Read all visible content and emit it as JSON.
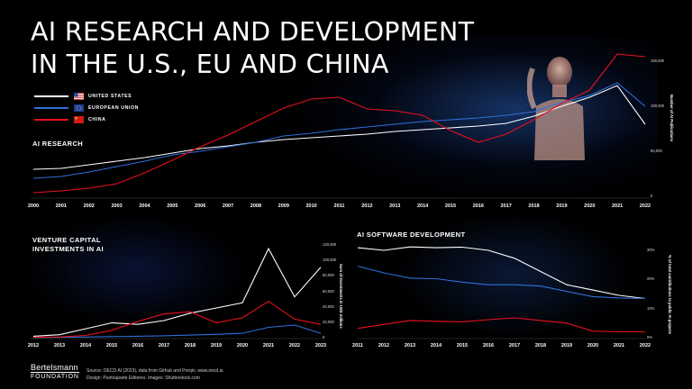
{
  "title": {
    "line1": "AI RESEARCH AND DEVELOPMENT",
    "line2": "IN THE U.S., EU AND CHINA"
  },
  "legend": [
    {
      "label": "UNITED STATES",
      "color": "#ffffff",
      "flag": "us-flag-icon"
    },
    {
      "label": "EUROPEAN UNION",
      "color": "#2f6fd8",
      "flag": "eu-flag-icon"
    },
    {
      "label": "CHINA",
      "color": "#e8101e",
      "flag": "china-flag-icon"
    }
  ],
  "colors": {
    "us": "#ffffff",
    "eu": "#2f6fd8",
    "china": "#e8101e",
    "background": "#000000"
  },
  "footer": {
    "logo_top": "Bertelsmann",
    "logo_bottom": "FOUNDATION",
    "source_line1": "Source: OECD.AI (2023), data from Github and Preqin. www.oecd.ai.",
    "source_line2": "Design: Puntoaparte Editores. Images: Shutterstock.com"
  },
  "chart_data": [
    {
      "type": "line",
      "title": "AI RESEARCH",
      "ylabel": "Number of AI Publications",
      "ylim": [
        0,
        150000
      ],
      "yticks": [
        "0",
        "50,000",
        "100,000",
        "150,000"
      ],
      "x": [
        "2000",
        "2001",
        "2002",
        "2003",
        "2004",
        "2005",
        "2006",
        "2007",
        "2008",
        "2009",
        "2010",
        "2011",
        "2012",
        "2013",
        "2014",
        "2015",
        "2016",
        "2017",
        "2018",
        "2019",
        "2020",
        "2021",
        "2022"
      ],
      "series": [
        {
          "name": "UNITED STATES",
          "values": [
            30000,
            31000,
            35000,
            39000,
            43000,
            48000,
            53000,
            56000,
            60000,
            63000,
            65000,
            67000,
            69000,
            72000,
            74000,
            76000,
            78000,
            81000,
            89000,
            100000,
            110000,
            123000,
            80000
          ]
        },
        {
          "name": "EUROPEAN UNION",
          "values": [
            20000,
            22000,
            27000,
            33000,
            39000,
            46000,
            50000,
            55000,
            60000,
            67000,
            70000,
            74000,
            77000,
            80000,
            83000,
            85000,
            87000,
            90000,
            94000,
            104000,
            112000,
            126000,
            100000
          ]
        },
        {
          "name": "CHINA",
          "values": [
            4000,
            6000,
            9000,
            14000,
            26000,
            40000,
            55000,
            68000,
            83000,
            98000,
            108000,
            110000,
            97000,
            95000,
            90000,
            73000,
            60000,
            69000,
            85000,
            103000,
            118000,
            158000,
            155000
          ]
        }
      ]
    },
    {
      "type": "line",
      "title": "VENTURE CAPITAL INVESTMENTS IN AI",
      "ylabel": "Sum of Investments in USD millions",
      "ylim": [
        0,
        125000
      ],
      "yticks": [
        "0",
        "20,000",
        "40,000",
        "60,000",
        "80,000",
        "100,000",
        "120,000"
      ],
      "x": [
        "2012",
        "2013",
        "2014",
        "2015",
        "2016",
        "2017",
        "2018",
        "2019",
        "2020",
        "2021",
        "2022",
        "2023"
      ],
      "series": [
        {
          "name": "UNITED STATES",
          "values": [
            2000,
            4000,
            12000,
            20000,
            18000,
            23000,
            33000,
            40000,
            47000,
            120000,
            55000,
            95000
          ]
        },
        {
          "name": "EUROPEAN UNION",
          "values": [
            300,
            500,
            800,
            1500,
            2000,
            2500,
            3500,
            4500,
            6000,
            14000,
            17000,
            6000
          ]
        },
        {
          "name": "CHINA",
          "values": [
            500,
            1000,
            3000,
            10000,
            22000,
            32000,
            35000,
            20000,
            27000,
            49000,
            25000,
            18000
          ]
        }
      ]
    },
    {
      "type": "line",
      "title": "AI SOFTWARE DEVELOPMENT",
      "ylabel": "% of total contributions to public AI projects",
      "ylim": [
        0,
        0.33
      ],
      "yticks": [
        "0%",
        "10%",
        "20%",
        "30%"
      ],
      "x": [
        "2011",
        "2012",
        "2013",
        "2014",
        "2015",
        "2016",
        "2017",
        "2018",
        "2019",
        "2020",
        "2021",
        "2022"
      ],
      "series": [
        {
          "name": "UNITED STATES",
          "values": [
            0.34,
            0.33,
            0.343,
            0.34,
            0.342,
            0.33,
            0.3,
            0.25,
            0.2,
            0.18,
            0.16,
            0.148
          ]
        },
        {
          "name": "EUROPEAN UNION",
          "values": [
            0.27,
            0.245,
            0.225,
            0.223,
            0.21,
            0.2,
            0.2,
            0.195,
            0.175,
            0.155,
            0.15,
            0.148
          ]
        },
        {
          "name": "CHINA",
          "values": [
            0.035,
            0.05,
            0.065,
            0.062,
            0.06,
            0.068,
            0.075,
            0.065,
            0.055,
            0.025,
            0.022,
            0.022
          ]
        }
      ]
    }
  ]
}
